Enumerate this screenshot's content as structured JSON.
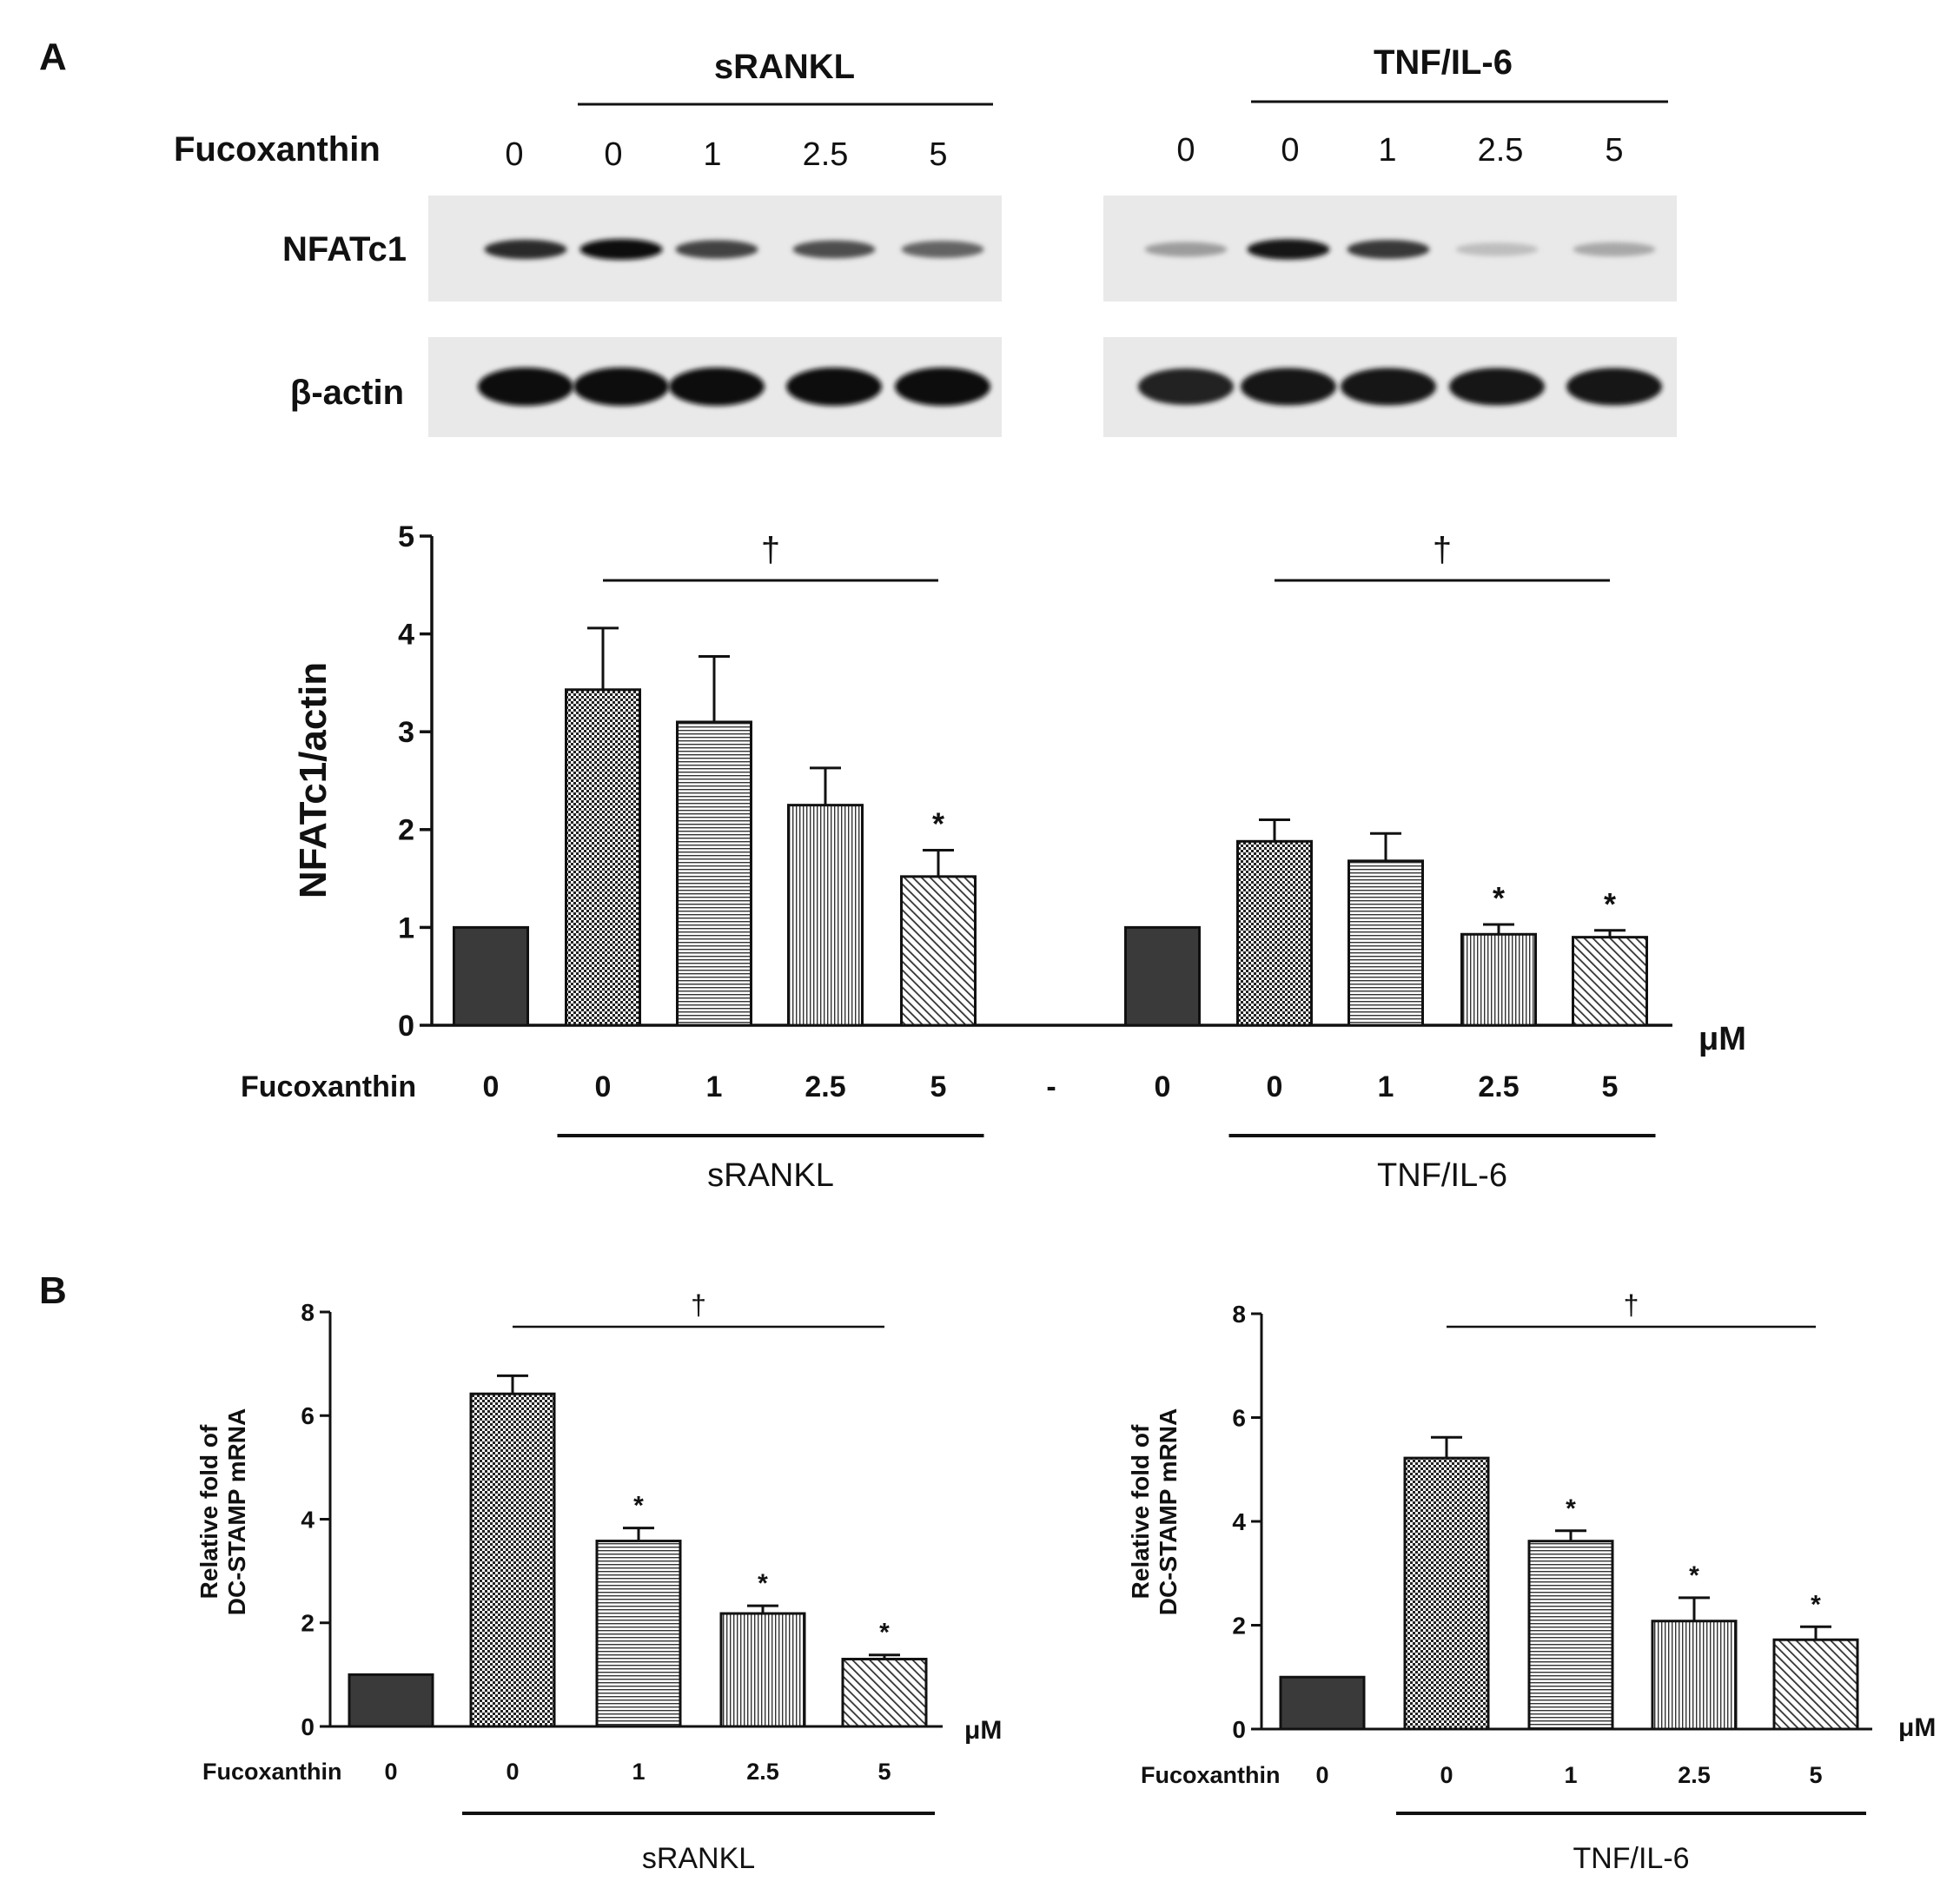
{
  "panelA": {
    "label": "A",
    "blot": {
      "treatment_left": "sRANKL",
      "treatment_right": "TNF/IL-6",
      "row_label_fucoxanthin": "Fucoxanthin",
      "doses_left": [
        "0",
        "0",
        "1",
        "2.5",
        "5"
      ],
      "doses_right": [
        "0",
        "0",
        "1",
        "2.5",
        "5"
      ],
      "bands": [
        {
          "name": "NFATc1",
          "left_intensity": [
            0.85,
            1.0,
            0.75,
            0.7,
            0.6
          ],
          "right_intensity": [
            0.35,
            0.95,
            0.8,
            0.2,
            0.3
          ]
        },
        {
          "name": "β-actin",
          "left_intensity": [
            1.0,
            1.0,
            1.0,
            1.0,
            1.0
          ],
          "right_intensity": [
            0.9,
            0.95,
            0.95,
            0.95,
            0.95
          ]
        }
      ]
    }
  },
  "panelB": {
    "label": "B"
  },
  "chart_data": [
    {
      "type": "bar",
      "panel": "A",
      "ylabel": "NFATc1/actin",
      "xlabel": "μM",
      "ylim": [
        0,
        5
      ],
      "yticks": [
        "0",
        "1",
        "2",
        "3",
        "4",
        "5"
      ],
      "x_row_label": "Fucoxanthin",
      "categories": [
        "0",
        "0",
        "1",
        "2.5",
        "5",
        "-",
        "0",
        "0",
        "1",
        "2.5",
        "5"
      ],
      "values": [
        1.0,
        3.43,
        3.1,
        2.25,
        1.52,
        null,
        1.0,
        1.88,
        1.68,
        0.93,
        0.9
      ],
      "errors": [
        0,
        0.63,
        0.67,
        0.38,
        0.27,
        null,
        0,
        0.22,
        0.28,
        0.1,
        0.07
      ],
      "significance": [
        "",
        "",
        "",
        "",
        "*",
        "",
        "",
        "",
        "",
        "*",
        "*"
      ],
      "patterns": [
        "solid",
        "checker",
        "hlines",
        "vlines",
        "diag",
        "",
        "solid",
        "checker",
        "hlines",
        "vlines",
        "diag"
      ],
      "group_labels": [
        {
          "label": "sRANKL",
          "from": 1,
          "to": 4
        },
        {
          "label": "TNF/IL-6",
          "from": 7,
          "to": 10
        }
      ],
      "bracket_marks": [
        {
          "label": "†",
          "from": 1,
          "to": 4
        },
        {
          "label": "†",
          "from": 7,
          "to": 10
        }
      ]
    },
    {
      "type": "bar",
      "panel": "B-left",
      "ylabel_lines": [
        "Relative fold of",
        "DC-STAMP mRNA"
      ],
      "xlabel": "μM",
      "ylim": [
        0,
        8
      ],
      "yticks": [
        "0",
        "2",
        "4",
        "6",
        "8"
      ],
      "x_row_label": "Fucoxanthin",
      "categories": [
        "0",
        "0",
        "1",
        "2.5",
        "5"
      ],
      "values": [
        1.0,
        6.42,
        3.58,
        2.18,
        1.3
      ],
      "errors": [
        0,
        0.35,
        0.25,
        0.15,
        0.08
      ],
      "significance": [
        "",
        "",
        "*",
        "*",
        "*"
      ],
      "patterns": [
        "solid",
        "checker",
        "hlines",
        "vlines",
        "diag"
      ],
      "group_label": {
        "label": "sRANKL",
        "from": 1,
        "to": 4
      },
      "bracket_mark": {
        "label": "†",
        "from": 1,
        "to": 4
      }
    },
    {
      "type": "bar",
      "panel": "B-right",
      "ylabel_lines": [
        "Relative fold of",
        "DC-STAMP mRNA"
      ],
      "xlabel": "μM",
      "ylim": [
        0,
        8
      ],
      "yticks": [
        "0",
        "2",
        "4",
        "6",
        "8"
      ],
      "x_row_label": "Fucoxanthin",
      "categories": [
        "0",
        "0",
        "1",
        "2.5",
        "5"
      ],
      "values": [
        1.0,
        5.22,
        3.62,
        2.08,
        1.72
      ],
      "errors": [
        0,
        0.4,
        0.2,
        0.45,
        0.25
      ],
      "significance": [
        "",
        "",
        "*",
        "*",
        "*"
      ],
      "patterns": [
        "solid",
        "checker",
        "hlines",
        "vlines",
        "diag"
      ],
      "group_label": {
        "label": "TNF/IL-6",
        "from": 1,
        "to": 4
      },
      "bracket_mark": {
        "label": "†",
        "from": 1,
        "to": 4
      }
    }
  ]
}
